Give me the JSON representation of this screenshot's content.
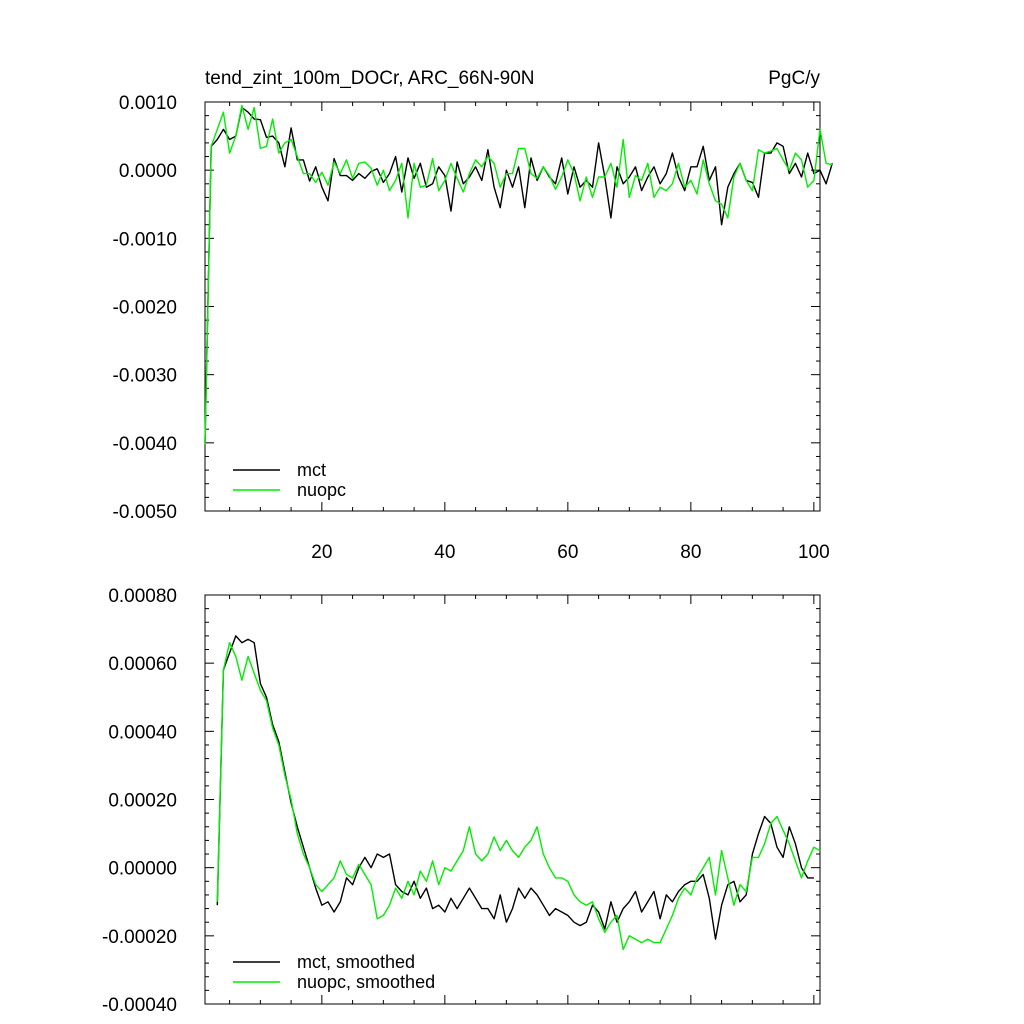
{
  "header": {
    "title": "tend_zint_100m_DOCr, ARC_66N-90N",
    "units": "PgC/y"
  },
  "chart_data": [
    {
      "type": "line",
      "xlim": [
        1,
        101
      ],
      "ylim": [
        -0.005,
        0.001
      ],
      "x_ticks": [
        20,
        40,
        60,
        80,
        100
      ],
      "x_tick_labels": [
        "20",
        "40",
        "60",
        "80",
        "100"
      ],
      "y_ticks": [
        0.001,
        0.0,
        -0.001,
        -0.002,
        -0.003,
        -0.004,
        -0.005
      ],
      "y_tick_labels": [
        "0.0010",
        "0.0000",
        "-0.0010",
        "-0.0020",
        "-0.0030",
        "-0.0040",
        "-0.0050"
      ],
      "legend_position": "bottom-left",
      "colors": {
        "mct": "#000000",
        "nuopc": "#00ee00"
      },
      "x_start": 1,
      "series": [
        {
          "name": "mct",
          "color": "#000000",
          "values": [
            -0.004,
            0.00035,
            0.00045,
            0.0006,
            0.00045,
            0.0005,
            0.00092,
            0.00085,
            0.00075,
            0.00074,
            0.00048,
            0.0005,
            0.0004,
            5e-05,
            0.00062,
            0.00015,
            0.00015,
            -0.00016,
            5e-05,
            -0.00025,
            -0.00045,
            0.00017,
            -8e-05,
            -8e-05,
            -0.00015,
            -5e-05,
            -0.00012,
            -2e-05,
            2e-05,
            -0.00018,
            -5e-05,
            0.0002,
            -0.00032,
            0.00018,
            -0.00012,
            0.0001,
            -0.00025,
            -0.0002,
            5e-05,
            -8e-05,
            -0.0006,
            0.00012,
            -0.0002,
            -0.0001,
            5e-05,
            -0.00015,
            0.0003,
            -0.00025,
            -0.00055,
            0.0,
            -0.00025,
            5e-05,
            -0.00055,
            0.00018,
            -0.00015,
            5e-05,
            -0.0001,
            -0.0002,
            0.00018,
            -0.00035,
            5e-05,
            -0.00025,
            -0.00015,
            -0.00025,
            0.0004,
            -0.0001,
            -0.0007,
            5e-05,
            -0.0002,
            -0.0001,
            5e-05,
            -0.0003,
            -0.0001,
            5e-05,
            -0.0002,
            -5e-05,
            0.00025,
            -0.0001,
            -0.0003,
            5e-05,
            5e-05,
            0.00035,
            -0.00015,
            5e-05,
            -0.0008,
            -0.00025,
            -5e-05,
            0.0001,
            -0.00015,
            -0.00018,
            -0.0004,
            0.00025,
            0.00025,
            0.0004,
            0.00035,
            -5e-05,
            0.0001,
            -0.0001,
            0.00025,
            -5e-05,
            0.0,
            -0.0002,
            0.0001
          ]
        },
        {
          "name": "nuopc",
          "color": "#00ee00",
          "values": [
            -0.00402,
            0.00035,
            0.0006,
            0.00085,
            0.00025,
            0.0005,
            0.00095,
            0.0006,
            0.00092,
            0.00032,
            0.00035,
            0.00075,
            0.00025,
            0.0004,
            0.00045,
            0.0002,
            -5e-05,
            -5e-05,
            -0.00018,
            -3e-05,
            -0.00022,
            0.00012,
            -5e-05,
            0.00015,
            -0.00012,
            0.0001,
            0.00012,
            3e-05,
            -0.00022,
            0.0,
            -0.0003,
            -0.00015,
            0.0001,
            -0.0007,
            0.0001,
            -0.00025,
            -0.00022,
            0.00017,
            -0.0003,
            -0.00015,
            0.0001,
            -0.00012,
            -0.00032,
            -5e-05,
            0.00015,
            5e-05,
            0.0002,
            0.0001,
            -0.00025,
            -5e-05,
            -5e-05,
            0.00032,
            0.00032,
            -5e-05,
            -0.00012,
            5e-05,
            -8e-05,
            -0.00028,
            -0.0001,
            0.00015,
            -5e-05,
            -0.00045,
            -0.0001,
            -0.0004,
            -0.0001,
            -0.0001,
            0.0001,
            -0.00025,
            0.00045,
            -0.0004,
            -8e-05,
            -0.00015,
            0.0001,
            -0.0004,
            -0.00025,
            -0.0003,
            -0.0002,
            0.0001,
            -0.00025,
            -0.00015,
            -0.00035,
            0.00015,
            -0.0002,
            -0.00045,
            -0.0005,
            -0.0007,
            -0.0001,
            0.0001,
            -0.00015,
            -0.0003,
            0.0003,
            0.00025,
            0.00028,
            0.00032,
            0.00015,
            0.0,
            0.00025,
            0.00015,
            -0.00025,
            -0.00015,
            0.0006,
            0.0001,
            8e-05
          ]
        }
      ]
    },
    {
      "type": "line",
      "xlim": [
        1,
        101
      ],
      "ylim": [
        -0.0004,
        0.0008
      ],
      "x_ticks": [
        20,
        40,
        60,
        80,
        100
      ],
      "y_ticks": [
        0.0008,
        0.0006,
        0.0004,
        0.0002,
        0.0,
        -0.0002,
        -0.0004
      ],
      "y_tick_labels": [
        "0.00080",
        "0.00060",
        "0.00040",
        "0.00020",
        "0.00000",
        "-0.00020",
        "-0.00040"
      ],
      "legend_position": "bottom-left",
      "colors": {
        "mct, smoothed": "#000000",
        "nuopc, smoothed": "#00ee00"
      },
      "x_start": 3,
      "series": [
        {
          "name": "mct, smoothed",
          "color": "#000000",
          "values": [
            -0.00011,
            0.00058,
            0.00063,
            0.00068,
            0.00066,
            0.00067,
            0.00066,
            0.00054,
            0.0005,
            0.00042,
            0.00037,
            0.00028,
            0.00019,
            0.00012,
            6e-05,
            0.0,
            -6e-05,
            -0.00011,
            -0.0001,
            -0.00013,
            -0.0001,
            -3e-05,
            -5e-05,
            0.0,
            3e-05,
            0.0,
            4e-05,
            3e-05,
            4e-05,
            -5e-05,
            -7e-05,
            -8e-05,
            -4e-05,
            -9e-05,
            -6e-05,
            -0.00012,
            -0.00011,
            -0.00013,
            -9e-05,
            -0.00012,
            -9e-05,
            -6e-05,
            -9e-05,
            -0.00012,
            -0.00012,
            -0.00015,
            -8e-05,
            -0.00016,
            -0.00012,
            -6e-05,
            -9e-05,
            -6e-05,
            -8e-05,
            -0.00011,
            -0.00014,
            -0.00012,
            -0.00013,
            -0.00014,
            -0.00016,
            -0.00017,
            -0.00016,
            -0.00011,
            -0.00013,
            -0.00018,
            -0.0001,
            -0.00016,
            -0.00012,
            -0.0001,
            -7e-05,
            -0.00013,
            -0.0001,
            -7e-05,
            -0.00015,
            -8e-05,
            -0.0001,
            -7e-05,
            -5e-05,
            -4e-05,
            -4e-05,
            -2e-05,
            -9e-05,
            -0.00021,
            -0.00011,
            -5e-05,
            -4e-05,
            -0.0001,
            -8e-05,
            4e-05,
            0.0001,
            0.00015,
            0.00013,
            6e-05,
            3e-05,
            0.00012,
            7e-05,
            0.0,
            -3e-05,
            -3e-05
          ]
        },
        {
          "name": "nuopc, smoothed",
          "color": "#00ee00",
          "values": [
            -0.0001,
            0.00058,
            0.00066,
            0.00062,
            0.00055,
            0.00062,
            0.00057,
            0.00052,
            0.00049,
            0.00041,
            0.00036,
            0.00027,
            0.0002,
            0.0001,
            4e-05,
            0.0,
            -5e-05,
            -7e-05,
            -5e-05,
            -3e-05,
            2e-05,
            -2e-05,
            -3e-05,
            1e-05,
            -2e-05,
            -5e-05,
            -0.00015,
            -0.00014,
            -0.00011,
            -6e-05,
            -9e-05,
            -4e-05,
            -8e-05,
            -1e-05,
            -4e-05,
            2e-05,
            -5e-05,
            0.0,
            -1e-05,
            2e-05,
            5e-05,
            0.00012,
            4e-05,
            2e-05,
            4e-05,
            9e-05,
            5e-05,
            8e-05,
            5e-05,
            3e-05,
            6e-05,
            8e-05,
            0.00012,
            4e-05,
            0.0,
            -3e-05,
            -3e-05,
            -4e-05,
            -8e-05,
            -0.0001,
            -0.00011,
            -0.0001,
            -0.00015,
            -0.00019,
            -0.00016,
            -0.00014,
            -0.00024,
            -0.0002,
            -0.00021,
            -0.00022,
            -0.00021,
            -0.00022,
            -0.00022,
            -0.00018,
            -0.00014,
            -9e-05,
            -6e-05,
            -8e-05,
            -3e-05,
            0.0,
            3e-05,
            -8e-05,
            5e-05,
            -3e-05,
            -0.00011,
            -5e-05,
            -7e-05,
            3e-05,
            3e-05,
            7e-05,
            0.00013,
            0.00015,
            0.00011,
            7e-05,
            2e-05,
            -3e-05,
            2e-05,
            6e-05,
            5e-05
          ]
        }
      ]
    }
  ]
}
